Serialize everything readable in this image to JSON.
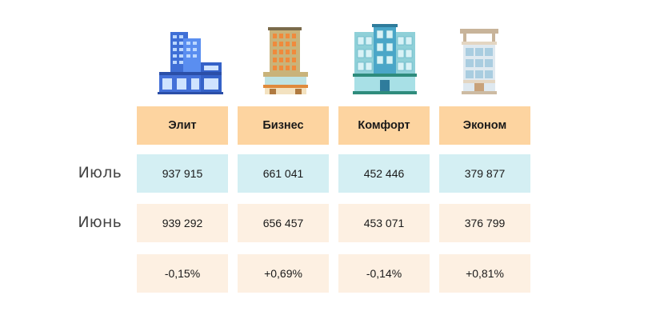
{
  "categories": [
    {
      "name": "Элит",
      "icon": "elite-building-icon"
    },
    {
      "name": "Бизнес",
      "icon": "business-building-icon"
    },
    {
      "name": "Комфорт",
      "icon": "comfort-building-icon"
    },
    {
      "name": "Эконом",
      "icon": "economy-building-icon"
    }
  ],
  "rows": {
    "july": {
      "label": "Июль",
      "values": [
        "937 915",
        "661 041",
        "452 446",
        "379 877"
      ]
    },
    "june": {
      "label": "Июнь",
      "values": [
        "939 292",
        "656 457",
        "453 071",
        "376 799"
      ]
    },
    "change": {
      "label": "",
      "values": [
        "-0,15%",
        "+0,69%",
        "-0,14%",
        "+0,81%"
      ]
    }
  },
  "colors": {
    "header_bg": "#fdd4a0",
    "july_bg": "#d4eff3",
    "june_bg": "#fdf0e2",
    "change_bg": "#fdf0e2"
  }
}
